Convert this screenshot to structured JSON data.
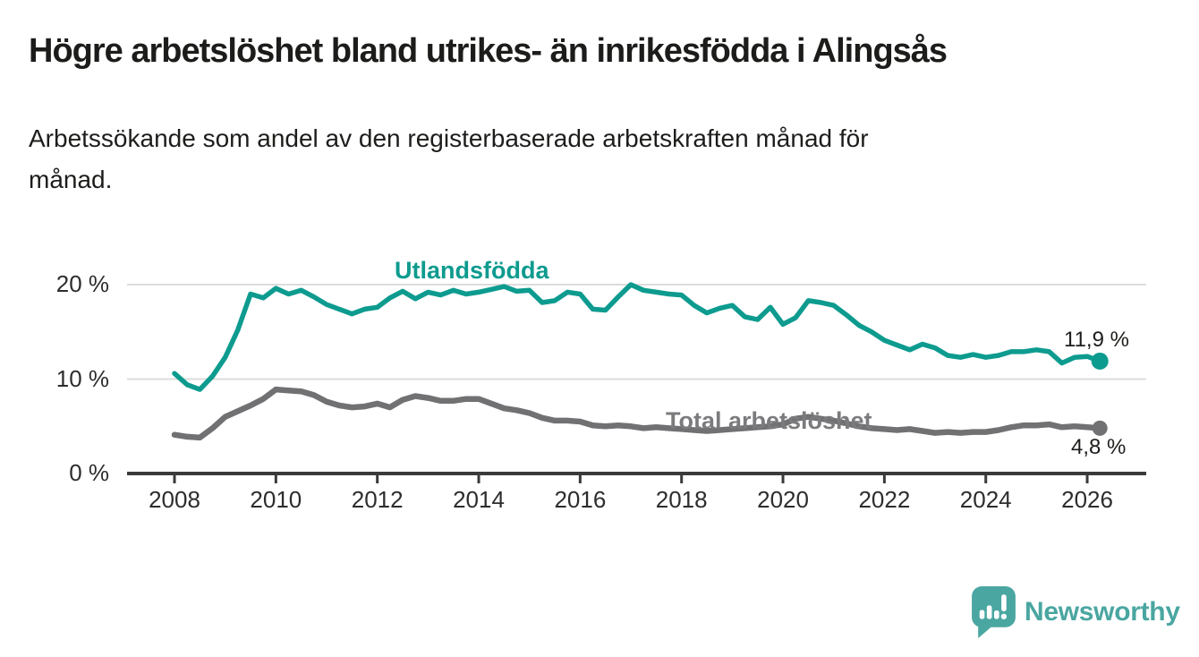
{
  "chart_data": {
    "type": "line",
    "title": "Högre arbetslöshet bland utrikes- än inrikesfödda i Alingsås",
    "subtitle": "Arbetssökande som andel av den registerbaserade arbetskraften månad för månad.",
    "subtitle_lines": [
      "Arbetssökande som andel av den registerbaserade arbetskraften månad för",
      "månad."
    ],
    "x_unit": "year",
    "x_ticks": [
      2008,
      2010,
      2012,
      2014,
      2016,
      2018,
      2020,
      2022,
      2024,
      2026
    ],
    "y_ticks": [
      {
        "value": 0,
        "label": "0 %"
      },
      {
        "value": 10,
        "label": "10 %"
      },
      {
        "value": 20,
        "label": "20 %"
      }
    ],
    "ylim": [
      0,
      21.5
    ],
    "grid": "horizontal",
    "axis_color": "#3a3a3a",
    "grid_color": "#dcdcdc",
    "series": [
      {
        "name": "Utlandsfödda",
        "color": "#0d9b8f",
        "end_label": "11,9 %",
        "end_value": 11.9,
        "x": [
          2008,
          2008.25,
          2008.5,
          2008.75,
          2009,
          2009.25,
          2009.5,
          2009.75,
          2010,
          2010.25,
          2010.5,
          2010.75,
          2011,
          2011.25,
          2011.5,
          2011.75,
          2012,
          2012.25,
          2012.5,
          2012.75,
          2013,
          2013.25,
          2013.5,
          2013.75,
          2014,
          2014.25,
          2014.5,
          2014.75,
          2015,
          2015.25,
          2015.5,
          2015.75,
          2016,
          2016.25,
          2016.5,
          2016.75,
          2017,
          2017.25,
          2017.5,
          2017.75,
          2018,
          2018.25,
          2018.5,
          2018.75,
          2019,
          2019.25,
          2019.5,
          2019.75,
          2020,
          2020.25,
          2020.5,
          2020.75,
          2021,
          2021.25,
          2021.5,
          2021.75,
          2022,
          2022.25,
          2022.5,
          2022.75,
          2023,
          2023.25,
          2023.5,
          2023.75,
          2024,
          2024.25,
          2024.5,
          2024.75,
          2025,
          2025.25,
          2025.5,
          2025.75,
          2026,
          2026.25
        ],
        "values": [
          10.6,
          9.4,
          8.9,
          10.3,
          12.3,
          15.2,
          19.0,
          18.6,
          19.6,
          19.0,
          19.4,
          18.7,
          17.9,
          17.4,
          16.9,
          17.4,
          17.6,
          18.6,
          19.3,
          18.5,
          19.2,
          18.9,
          19.4,
          19.0,
          19.2,
          19.5,
          19.8,
          19.3,
          19.4,
          18.1,
          18.3,
          19.2,
          19.0,
          17.4,
          17.3,
          18.7,
          20.0,
          19.4,
          19.2,
          19.0,
          18.9,
          17.8,
          17.0,
          17.5,
          17.8,
          16.6,
          16.3,
          17.6,
          15.8,
          16.5,
          18.3,
          18.1,
          17.8,
          16.8,
          15.7,
          15.0,
          14.1,
          13.6,
          13.1,
          13.7,
          13.3,
          12.5,
          12.3,
          12.6,
          12.3,
          12.5,
          12.9,
          12.9,
          13.1,
          12.9,
          11.7,
          12.3,
          12.4,
          11.9
        ]
      },
      {
        "name": "Total arbetslöshet",
        "color": "#717174",
        "label_color": "#7b7b7e",
        "end_label": "4,8 %",
        "end_value": 4.8,
        "x": [
          2008,
          2008.25,
          2008.5,
          2008.75,
          2009,
          2009.25,
          2009.5,
          2009.75,
          2010,
          2010.25,
          2010.5,
          2010.75,
          2011,
          2011.25,
          2011.5,
          2011.75,
          2012,
          2012.25,
          2012.5,
          2012.75,
          2013,
          2013.25,
          2013.5,
          2013.75,
          2014,
          2014.25,
          2014.5,
          2014.75,
          2015,
          2015.25,
          2015.5,
          2015.75,
          2016,
          2016.25,
          2016.5,
          2016.75,
          2017,
          2017.25,
          2017.5,
          2017.75,
          2018,
          2018.25,
          2018.5,
          2018.75,
          2019,
          2019.25,
          2019.5,
          2019.75,
          2020,
          2020.25,
          2020.5,
          2020.75,
          2021,
          2021.25,
          2021.5,
          2021.75,
          2022,
          2022.25,
          2022.5,
          2022.75,
          2023,
          2023.25,
          2023.5,
          2023.75,
          2024,
          2024.25,
          2024.5,
          2024.75,
          2025,
          2025.25,
          2025.5,
          2025.75,
          2026,
          2026.25
        ],
        "values": [
          4.1,
          3.9,
          3.8,
          4.8,
          6.0,
          6.6,
          7.2,
          7.9,
          8.9,
          8.8,
          8.7,
          8.3,
          7.6,
          7.2,
          7.0,
          7.1,
          7.4,
          7.0,
          7.8,
          8.2,
          8.0,
          7.7,
          7.7,
          7.9,
          7.9,
          7.4,
          6.9,
          6.7,
          6.4,
          5.9,
          5.6,
          5.6,
          5.5,
          5.1,
          5.0,
          5.1,
          5.0,
          4.8,
          4.9,
          4.8,
          4.7,
          4.6,
          4.5,
          4.6,
          4.7,
          4.8,
          4.9,
          5.0,
          5.2,
          5.8,
          6.0,
          5.8,
          5.6,
          5.3,
          5.0,
          4.8,
          4.7,
          4.6,
          4.7,
          4.5,
          4.3,
          4.4,
          4.3,
          4.4,
          4.4,
          4.6,
          4.9,
          5.1,
          5.1,
          5.2,
          4.9,
          5.0,
          4.9,
          4.8
        ]
      }
    ]
  },
  "branding": {
    "logo_text": "Newsworthy",
    "logo_color": "#4aa6a1"
  }
}
